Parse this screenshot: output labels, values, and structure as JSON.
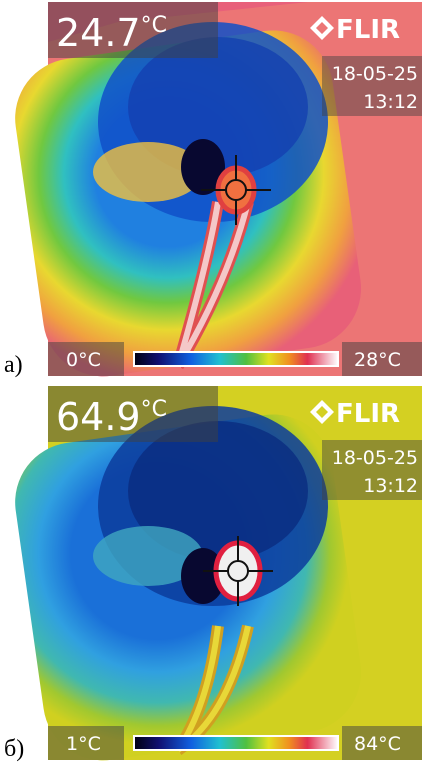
{
  "panels": [
    {
      "label": "а)",
      "reading_value": "24.7",
      "reading_unit": "°C",
      "brand": "FLIR",
      "date": "18-05-25",
      "time": "13:12",
      "scale_min": "0°C",
      "scale_max": "28°C"
    },
    {
      "label": "б)",
      "reading_value": "64.9",
      "reading_unit": "°C",
      "brand": "FLIR",
      "date": "18-05-25",
      "time": "13:12",
      "scale_min": "1°C",
      "scale_max": "84°C"
    }
  ]
}
